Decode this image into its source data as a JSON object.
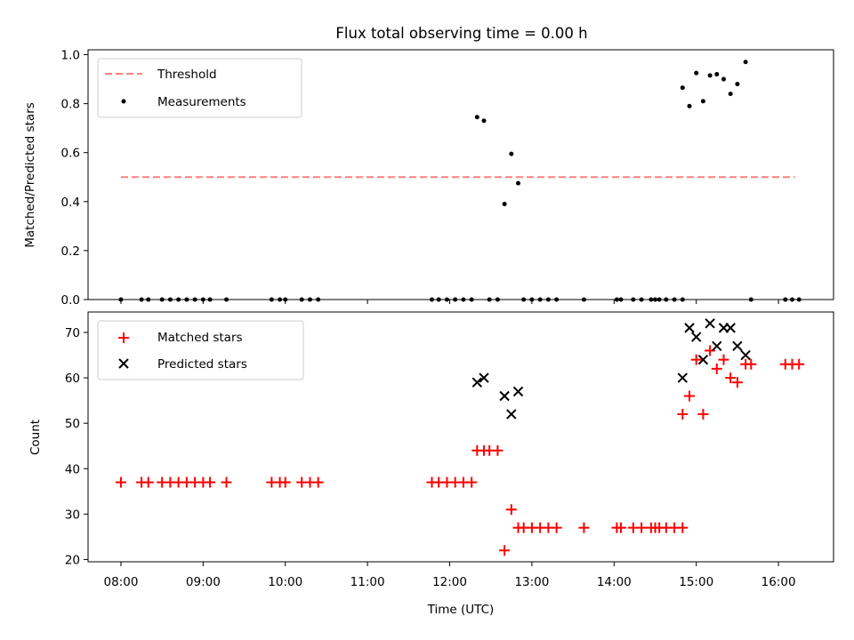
{
  "chart_data": [
    {
      "type": "scatter",
      "title": "Flux total observing time = 0.00 h",
      "xlabel": "",
      "ylabel": "Matched/Predicted stars",
      "ylim": [
        0,
        1.02
      ],
      "xlim_hours": [
        7.6,
        16.67
      ],
      "yticks": [
        "0.0",
        "0.2",
        "0.4",
        "0.6",
        "0.8",
        "1.0"
      ],
      "ytick_values": [
        0,
        0.2,
        0.4,
        0.6,
        0.8,
        1.0
      ],
      "legend": {
        "placement": "upper-left",
        "entries": [
          "Threshold",
          "Measurements"
        ]
      },
      "threshold": {
        "name": "Threshold",
        "value": 0.5,
        "x_start": "08:00",
        "x_end": "16:12",
        "color": "#ff7f7f"
      },
      "series": [
        {
          "name": "Measurements",
          "color": "#000000",
          "points": [
            [
              "08:00",
              0
            ],
            [
              "08:15",
              0
            ],
            [
              "08:20",
              0
            ],
            [
              "08:30",
              0
            ],
            [
              "08:36",
              0
            ],
            [
              "08:42",
              0
            ],
            [
              "08:48",
              0
            ],
            [
              "08:54",
              0
            ],
            [
              "09:00",
              0
            ],
            [
              "09:05",
              0
            ],
            [
              "09:17",
              0
            ],
            [
              "09:50",
              0
            ],
            [
              "09:56",
              0
            ],
            [
              "10:00",
              0
            ],
            [
              "10:12",
              0
            ],
            [
              "10:18",
              0
            ],
            [
              "10:24",
              0
            ],
            [
              "11:47",
              0
            ],
            [
              "11:52",
              0
            ],
            [
              "11:58",
              0
            ],
            [
              "12:04",
              0
            ],
            [
              "12:10",
              0
            ],
            [
              "12:16",
              0
            ],
            [
              "12:20",
              0.745
            ],
            [
              "12:25",
              0.73
            ],
            [
              "12:40",
              0.39
            ],
            [
              "12:45",
              0.595
            ],
            [
              "12:50",
              0.475
            ],
            [
              "12:29",
              0
            ],
            [
              "12:35",
              0
            ],
            [
              "12:54",
              0
            ],
            [
              "13:00",
              0
            ],
            [
              "13:06",
              0
            ],
            [
              "13:12",
              0
            ],
            [
              "13:18",
              0
            ],
            [
              "13:38",
              0
            ],
            [
              "14:02",
              0
            ],
            [
              "14:05",
              0
            ],
            [
              "14:14",
              0
            ],
            [
              "14:20",
              0
            ],
            [
              "14:27",
              0
            ],
            [
              "14:30",
              0
            ],
            [
              "14:33",
              0
            ],
            [
              "14:38",
              0
            ],
            [
              "14:44",
              0
            ],
            [
              "14:50",
              0
            ],
            [
              "14:50",
              0.865
            ],
            [
              "14:55",
              0.79
            ],
            [
              "15:00",
              0.925
            ],
            [
              "15:05",
              0.81
            ],
            [
              "15:10",
              0.915
            ],
            [
              "15:15",
              0.92
            ],
            [
              "15:20",
              0.9
            ],
            [
              "15:25",
              0.84
            ],
            [
              "15:30",
              0.88
            ],
            [
              "15:36",
              0.97
            ],
            [
              "15:40",
              0
            ],
            [
              "16:05",
              0
            ],
            [
              "16:10",
              0
            ],
            [
              "16:15",
              0
            ]
          ]
        }
      ]
    },
    {
      "type": "scatter",
      "title": "",
      "xlabel": "Time (UTC)",
      "ylabel": "Count",
      "ylim": [
        19.5,
        74.5
      ],
      "xlim_hours": [
        7.6,
        16.67
      ],
      "yticks": [
        "20",
        "30",
        "40",
        "50",
        "60",
        "70"
      ],
      "ytick_values": [
        20,
        30,
        40,
        50,
        60,
        70
      ],
      "xticks": [
        "08:00",
        "09:00",
        "10:00",
        "11:00",
        "12:00",
        "13:00",
        "14:00",
        "15:00",
        "16:00"
      ],
      "legend": {
        "placement": "upper-left",
        "entries": [
          "Matched stars",
          "Predicted stars"
        ]
      },
      "series": [
        {
          "name": "Matched stars",
          "marker": "plus",
          "color": "#ff0000",
          "points": [
            [
              "08:00",
              37
            ],
            [
              "08:15",
              37
            ],
            [
              "08:20",
              37
            ],
            [
              "08:30",
              37
            ],
            [
              "08:36",
              37
            ],
            [
              "08:42",
              37
            ],
            [
              "08:48",
              37
            ],
            [
              "08:54",
              37
            ],
            [
              "09:00",
              37
            ],
            [
              "09:05",
              37
            ],
            [
              "09:17",
              37
            ],
            [
              "09:50",
              37
            ],
            [
              "09:56",
              37
            ],
            [
              "10:00",
              37
            ],
            [
              "10:12",
              37
            ],
            [
              "10:18",
              37
            ],
            [
              "10:24",
              37
            ],
            [
              "11:47",
              37
            ],
            [
              "11:52",
              37
            ],
            [
              "11:58",
              37
            ],
            [
              "12:04",
              37
            ],
            [
              "12:10",
              37
            ],
            [
              "12:16",
              37
            ],
            [
              "12:20",
              44
            ],
            [
              "12:25",
              44
            ],
            [
              "12:29",
              44
            ],
            [
              "12:35",
              44
            ],
            [
              "12:40",
              22
            ],
            [
              "12:45",
              31
            ],
            [
              "12:50",
              27
            ],
            [
              "12:54",
              27
            ],
            [
              "13:00",
              27
            ],
            [
              "13:06",
              27
            ],
            [
              "13:12",
              27
            ],
            [
              "13:18",
              27
            ],
            [
              "13:38",
              27
            ],
            [
              "14:02",
              27
            ],
            [
              "14:05",
              27
            ],
            [
              "14:14",
              27
            ],
            [
              "14:20",
              27
            ],
            [
              "14:27",
              27
            ],
            [
              "14:30",
              27
            ],
            [
              "14:33",
              27
            ],
            [
              "14:38",
              27
            ],
            [
              "14:44",
              27
            ],
            [
              "14:50",
              27
            ],
            [
              "14:50",
              52
            ],
            [
              "14:55",
              56
            ],
            [
              "15:00",
              64
            ],
            [
              "15:05",
              52
            ],
            [
              "15:10",
              66
            ],
            [
              "15:15",
              62
            ],
            [
              "15:20",
              64
            ],
            [
              "15:25",
              60
            ],
            [
              "15:30",
              59
            ],
            [
              "15:36",
              63
            ],
            [
              "15:40",
              63
            ],
            [
              "16:05",
              63
            ],
            [
              "16:10",
              63
            ],
            [
              "16:15",
              63
            ]
          ]
        },
        {
          "name": "Predicted stars",
          "marker": "x",
          "color": "#000000",
          "points": [
            [
              "12:20",
              59
            ],
            [
              "12:25",
              60
            ],
            [
              "12:40",
              56
            ],
            [
              "12:45",
              52
            ],
            [
              "12:50",
              57
            ],
            [
              "14:50",
              60
            ],
            [
              "14:55",
              71
            ],
            [
              "15:00",
              69
            ],
            [
              "15:05",
              64
            ],
            [
              "15:10",
              72
            ],
            [
              "15:15",
              67
            ],
            [
              "15:20",
              71
            ],
            [
              "15:25",
              71
            ],
            [
              "15:30",
              67
            ],
            [
              "15:36",
              65
            ]
          ]
        }
      ]
    }
  ]
}
